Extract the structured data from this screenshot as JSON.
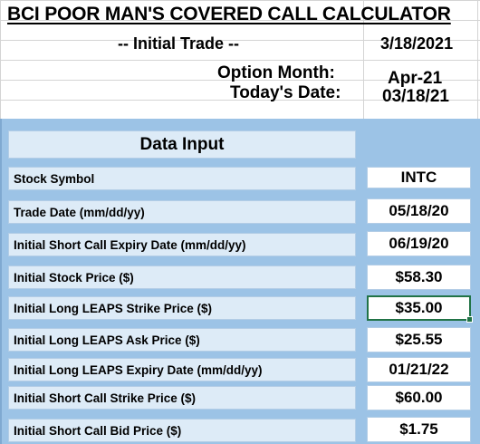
{
  "sheet": {
    "title": "BCI POOR MAN'S COVERED CALL CALCULATOR",
    "trade_label": "-- Initial Trade --",
    "trade_date": "3/18/2021",
    "option_month_label": "Option Month:",
    "option_month_value": "Apr-21",
    "todays_date_label": "Today's Date:",
    "todays_date_value": "03/18/21"
  },
  "data_input": {
    "heading": "Data Input",
    "rows": [
      {
        "label": "Stock Symbol",
        "value": "INTC"
      },
      {
        "label": "Trade Date  (mm/dd/yy)",
        "value": "05/18/20"
      },
      {
        "label": "Initial Short Call Expiry Date  (mm/dd/yy)",
        "value": "06/19/20"
      },
      {
        "label": "Initial Stock Price ($)",
        "value": "$58.30"
      },
      {
        "label": "Initial Long LEAPS Strike Price ($)",
        "value": "$35.00"
      },
      {
        "label": "Initial Long LEAPS Ask Price ($)",
        "value": "$25.55"
      },
      {
        "label": "Initial Long LEAPS Expiry Date (mm/dd/yy)",
        "value": "01/21/22"
      },
      {
        "label": "Initial Short Call Strike Price ($)",
        "value": "$60.00"
      },
      {
        "label": "Initial Short Call Bid Price ($)",
        "value": "$1.75"
      }
    ]
  }
}
